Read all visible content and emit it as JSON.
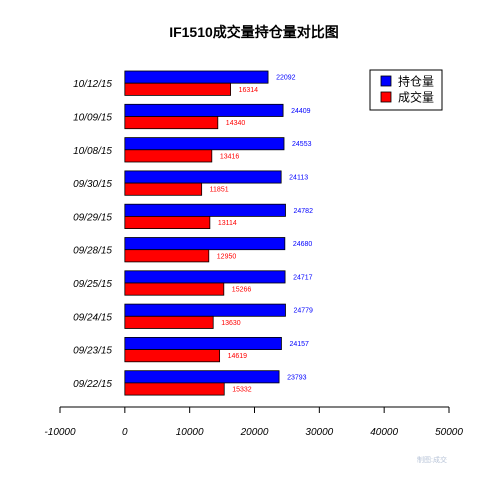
{
  "chart_data": {
    "type": "bar",
    "orientation": "horizontal",
    "title": "IF1510成交量持仓量对比图",
    "categories": [
      "10/12/15",
      "10/09/15",
      "10/08/15",
      "09/30/15",
      "09/29/15",
      "09/28/15",
      "09/25/15",
      "09/24/15",
      "09/23/15",
      "09/22/15"
    ],
    "series": [
      {
        "name": "持仓量",
        "color": "#0000ff",
        "values": [
          22092,
          24409,
          24553,
          24113,
          24782,
          24680,
          24717,
          24779,
          24157,
          23793
        ]
      },
      {
        "name": "成交量",
        "color": "#ff0000",
        "values": [
          16314,
          14340,
          13416,
          11851,
          13114,
          12950,
          15266,
          13630,
          14619,
          15332
        ]
      }
    ],
    "xlim": [
      -10000,
      50000
    ],
    "xticks": [
      -10000,
      0,
      10000,
      20000,
      30000,
      40000,
      50000
    ],
    "tick_labels": [
      "-10000",
      "0",
      "10000",
      "20000",
      "30000",
      "40000",
      "50000"
    ],
    "grid": false,
    "legend_position": "top-right"
  },
  "watermark": "制图:成交"
}
